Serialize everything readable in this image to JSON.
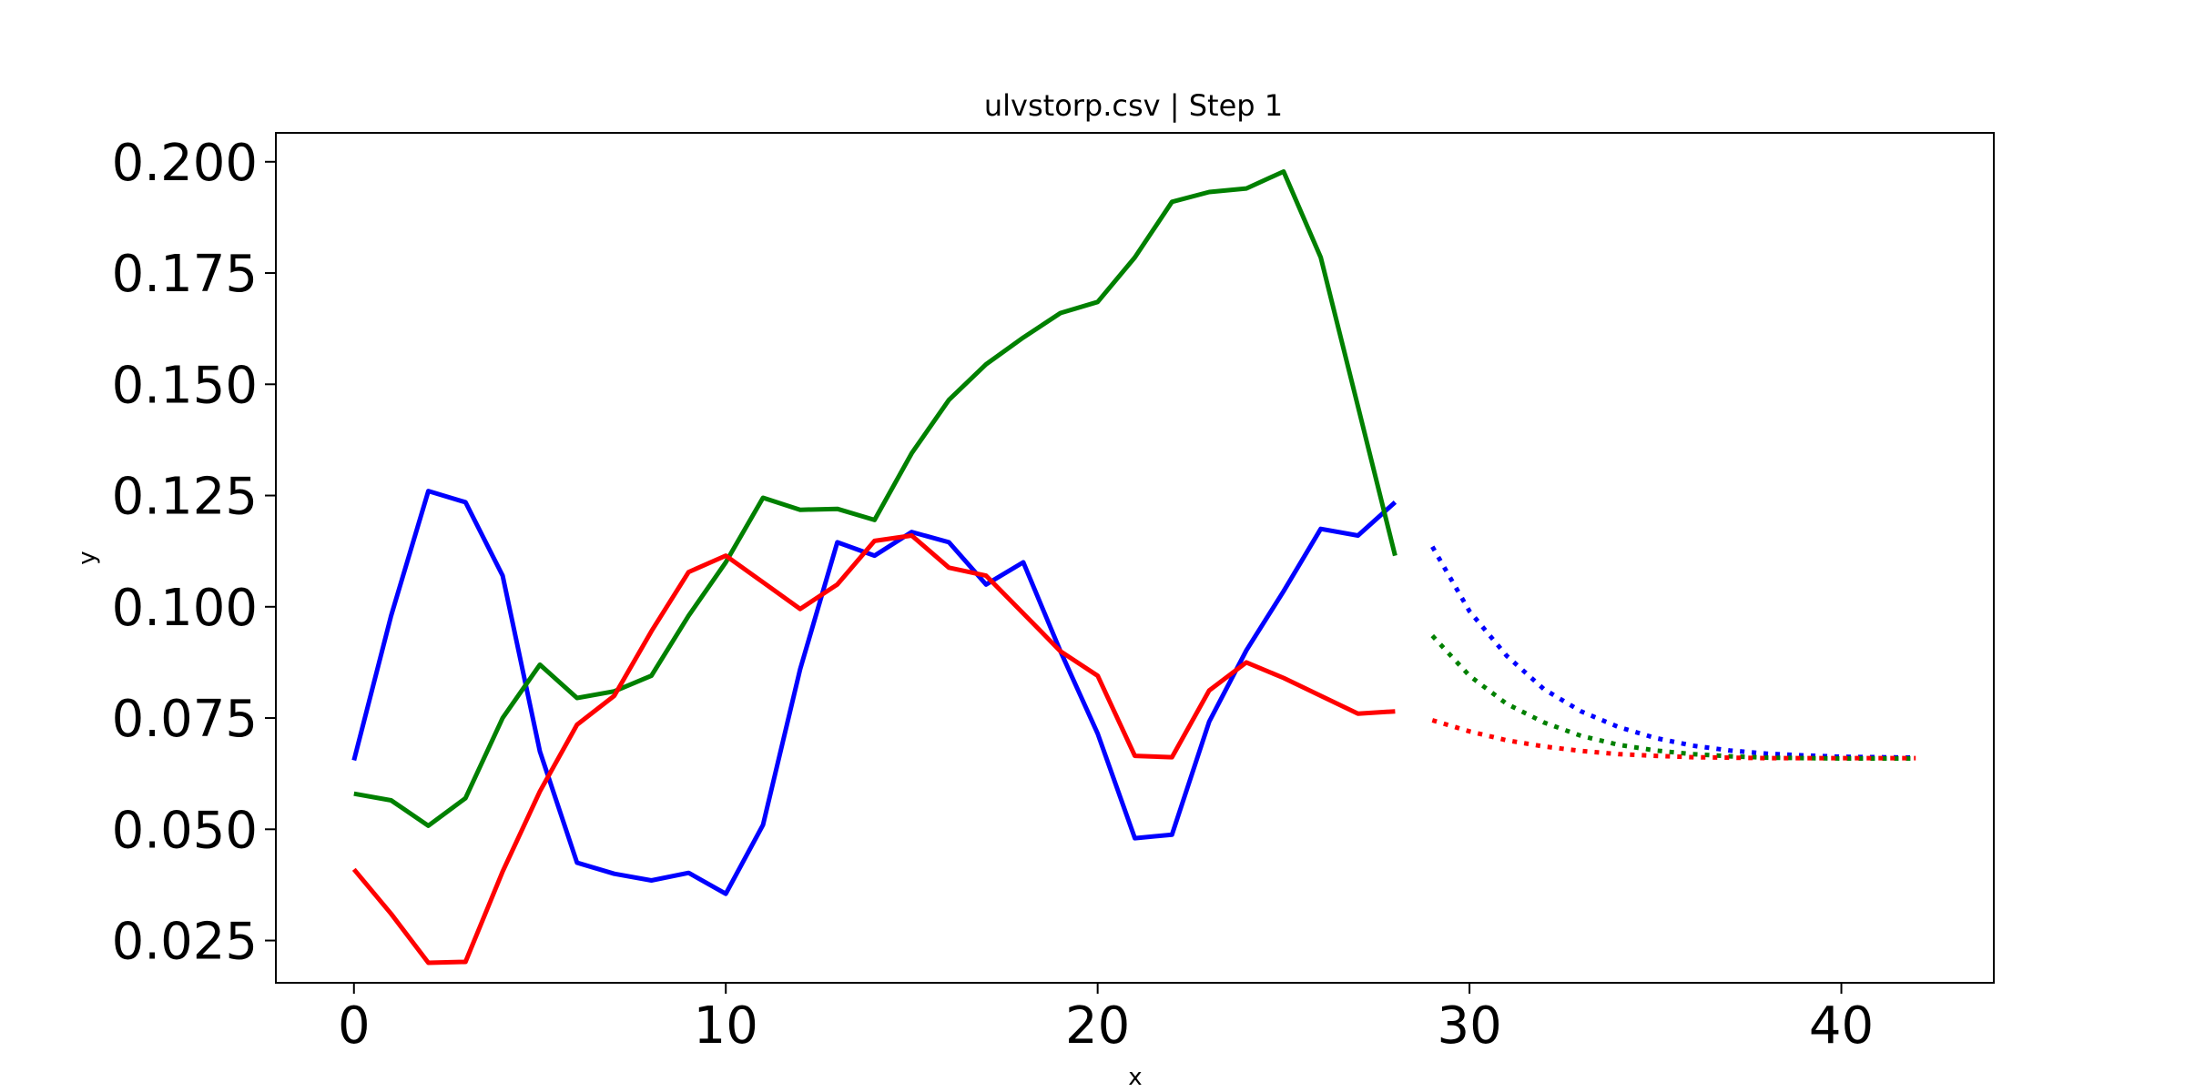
{
  "chart_data": {
    "type": "line",
    "title": "ulvstorp.csv | Step 1",
    "xlabel": "x",
    "ylabel": "y",
    "xlim": [
      -2.1,
      44.1
    ],
    "ylim": [
      0.0155,
      0.2065
    ],
    "xticks": [
      "0",
      "10",
      "20",
      "30",
      "40"
    ],
    "xtick_values": [
      0,
      10,
      20,
      30,
      40
    ],
    "yticks": [
      "0.025",
      "0.050",
      "0.075",
      "0.100",
      "0.125",
      "0.150",
      "0.175",
      "0.200"
    ],
    "ytick_values": [
      0.025,
      0.05,
      0.075,
      0.1,
      0.125,
      0.15,
      0.175,
      0.2
    ],
    "grid": false,
    "series": [
      {
        "color": "#0000ff",
        "style": "solid",
        "x": [
          0,
          1,
          2,
          3,
          4,
          5,
          6,
          7,
          8,
          9,
          10,
          11,
          12,
          13,
          14,
          15,
          16,
          17,
          18,
          19,
          20,
          21,
          22,
          23,
          24,
          25,
          26,
          27,
          28
        ],
        "values": [
          0.0655,
          0.098,
          0.126,
          0.1235,
          0.107,
          0.0675,
          0.0425,
          0.04,
          0.0385,
          0.0402,
          0.0355,
          0.051,
          0.086,
          0.1145,
          0.1115,
          0.1168,
          0.1145,
          0.105,
          0.11,
          0.09,
          0.0715,
          0.048,
          0.0488,
          0.0742,
          0.0902,
          0.1035,
          0.1175,
          0.116,
          0.1235
        ]
      },
      {
        "color": "#008000",
        "style": "solid",
        "x": [
          0,
          1,
          2,
          3,
          4,
          5,
          6,
          7,
          8,
          9,
          10,
          11,
          12,
          13,
          14,
          15,
          16,
          17,
          18,
          19,
          20,
          21,
          22,
          23,
          24,
          25,
          26,
          27,
          28
        ],
        "values": [
          0.058,
          0.0565,
          0.0508,
          0.057,
          0.075,
          0.087,
          0.0795,
          0.081,
          0.0845,
          0.098,
          0.11,
          0.1245,
          0.1218,
          0.122,
          0.1195,
          0.1345,
          0.1465,
          0.1545,
          0.1605,
          0.166,
          0.1685,
          0.1785,
          0.191,
          0.1932,
          0.194,
          0.1978,
          0.1785,
          0.145,
          0.1115
        ]
      },
      {
        "color": "#ff0000",
        "style": "solid",
        "x": [
          0,
          1,
          2,
          3,
          4,
          5,
          6,
          7,
          8,
          9,
          10,
          11,
          12,
          13,
          14,
          15,
          16,
          17,
          18,
          19,
          20,
          21,
          22,
          23,
          24,
          25,
          26,
          27,
          28
        ],
        "values": [
          0.041,
          0.031,
          0.02,
          0.0202,
          0.0405,
          0.0585,
          0.0735,
          0.08,
          0.0945,
          0.1078,
          0.1115,
          0.1055,
          0.0995,
          0.105,
          0.1148,
          0.116,
          0.1088,
          0.107,
          0.0985,
          0.09,
          0.0845,
          0.0665,
          0.0662,
          0.0812,
          0.0875,
          0.084,
          0.08,
          0.076,
          0.0765
        ]
      },
      {
        "color": "#0000ff",
        "style": "dotted",
        "x": [
          29,
          30,
          31,
          32,
          33,
          34,
          35,
          36,
          37,
          38,
          39,
          40,
          41,
          42
        ],
        "values": [
          0.1135,
          0.099,
          0.089,
          0.0815,
          0.0765,
          0.073,
          0.0705,
          0.0688,
          0.0677,
          0.067,
          0.0666,
          0.0663,
          0.0662,
          0.0661
        ]
      },
      {
        "color": "#008000",
        "style": "dotted",
        "x": [
          29,
          30,
          31,
          32,
          33,
          34,
          35,
          36,
          37,
          38,
          39,
          40,
          41,
          42
        ],
        "values": [
          0.0935,
          0.0845,
          0.0782,
          0.074,
          0.071,
          0.069,
          0.0677,
          0.0669,
          0.0664,
          0.0661,
          0.066,
          0.0659,
          0.0659,
          0.0659
        ]
      },
      {
        "color": "#ff0000",
        "style": "dotted",
        "x": [
          29,
          30,
          31,
          32,
          33,
          34,
          35,
          36,
          37,
          38,
          39,
          40,
          41,
          42
        ],
        "values": [
          0.0745,
          0.072,
          0.07,
          0.0686,
          0.0676,
          0.0669,
          0.0665,
          0.0662,
          0.0661,
          0.066,
          0.066,
          0.066,
          0.066,
          0.066
        ]
      }
    ]
  }
}
